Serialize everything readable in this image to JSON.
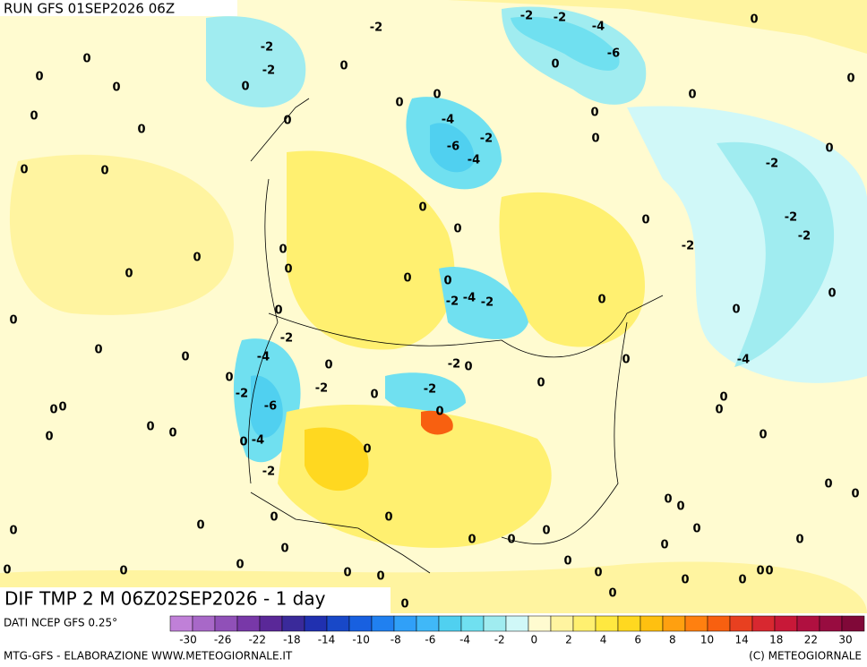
{
  "header": {
    "run": "RUN GFS 01SEP2026 06Z",
    "field": "DIF TMP 2 M 06Z02SEP2026 - 1 day"
  },
  "legend": {
    "source": "DATI NCEP GFS 0.25°",
    "ticks": [
      -30,
      -26,
      -22,
      -18,
      -14,
      -10,
      -8,
      -6,
      -4,
      -2,
      0,
      2,
      4,
      6,
      8,
      10,
      14,
      18,
      22,
      30
    ],
    "colors": [
      "#c080d8",
      "#a868c8",
      "#9050b8",
      "#7838a8",
      "#5a2898",
      "#3a2a9a",
      "#2030b0",
      "#1848c8",
      "#1860e0",
      "#2080f0",
      "#30a0f8",
      "#40b8f8",
      "#50d0f0",
      "#70e0f0",
      "#a0ecf0",
      "#d0f8f8",
      "#fffbd0",
      "#fff4a0",
      "#fff070",
      "#ffe840",
      "#ffd820",
      "#ffc010",
      "#ffa010",
      "#ff8010",
      "#f86010",
      "#e84020",
      "#d82830",
      "#c81838",
      "#b01040",
      "#980c40",
      "#800838"
    ]
  },
  "footer": {
    "credit": "MTG-GFS - ELABORAZIONE WWW.METEOGIORNALE.IT",
    "copyright": "(C) METEOGIORNALE"
  },
  "contour_labels": [
    -2,
    -2,
    -2,
    -4,
    -6,
    0,
    -2,
    0,
    -2,
    0,
    0,
    0,
    0,
    0,
    0,
    0,
    0,
    0,
    0,
    0,
    0,
    0,
    0,
    -4,
    -2,
    0,
    -6,
    -4,
    0,
    -2,
    0,
    0,
    0,
    0,
    -2,
    -2,
    0,
    -2,
    0,
    0,
    0,
    0,
    0,
    0,
    -2,
    -4,
    -2,
    0,
    0,
    0,
    0,
    0,
    -2,
    0,
    0,
    -4,
    0,
    -2,
    0,
    -4,
    0,
    0,
    0,
    -2,
    -2,
    0,
    -2,
    0,
    0,
    0,
    -6,
    0,
    0,
    0,
    0,
    0,
    0,
    -4,
    0,
    0,
    -2,
    0,
    0,
    0,
    0,
    0,
    0,
    0,
    0,
    0,
    0,
    0,
    0,
    0,
    0,
    0,
    0,
    0,
    0,
    0,
    0,
    0,
    0,
    0,
    0,
    0,
    0,
    0
  ]
}
